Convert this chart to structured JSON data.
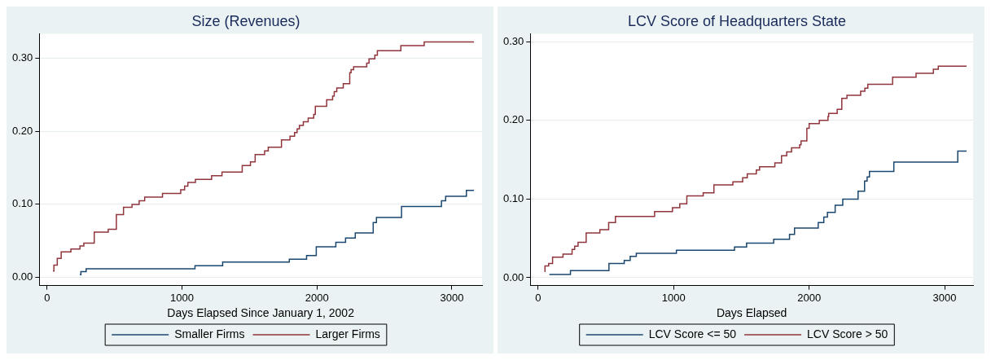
{
  "chart_data": [
    {
      "type": "step",
      "title": "Size (Revenues)",
      "xlabel": "Days Elapsed Since January 1, 2002",
      "xlim": [
        -58,
        3224
      ],
      "xticks": [
        0,
        1000,
        2000,
        3000
      ],
      "ylim": [
        -0.011,
        0.333
      ],
      "yticks": [
        {
          "value": 0,
          "label": "0.00"
        },
        {
          "value": 0.1,
          "label": "0.10"
        },
        {
          "value": 0.2,
          "label": "0.20"
        },
        {
          "value": 0.3,
          "label": "0.30"
        }
      ],
      "grid": "y",
      "legend": "bottom",
      "series": [
        {
          "name": "Smaller Firms",
          "color": "#1a476f",
          "x": [
            243,
            250,
            289,
            1096,
            1301,
            1795,
            1923,
            1995,
            2140,
            2212,
            2284,
            2417,
            2441,
            2627,
            2923,
            2954,
            3108,
            3164
          ],
          "values": [
            0.004,
            0.008,
            0.012,
            0.016,
            0.021,
            0.025,
            0.03,
            0.042,
            0.048,
            0.054,
            0.061,
            0.075,
            0.082,
            0.097,
            0.105,
            0.111,
            0.119,
            0.119
          ]
        },
        {
          "name": "Larger Firms",
          "color": "#90353b",
          "x": [
            43,
            50,
            75,
            104,
            176,
            243,
            272,
            349,
            453,
            513,
            566,
            629,
            682,
            723,
            855,
            990,
            1019,
            1043,
            1099,
            1219,
            1296,
            1446,
            1507,
            1542,
            1612,
            1639,
            1737,
            1800,
            1834,
            1853,
            1870,
            1899,
            1935,
            1976,
            1988,
            2072,
            2116,
            2128,
            2147,
            2195,
            2243,
            2253,
            2272,
            2369,
            2386,
            2429,
            2448,
            2622,
            2795,
            3164
          ],
          "values": [
            0.009,
            0.017,
            0.026,
            0.035,
            0.039,
            0.043,
            0.047,
            0.062,
            0.066,
            0.086,
            0.096,
            0.1,
            0.105,
            0.11,
            0.115,
            0.12,
            0.125,
            0.13,
            0.134,
            0.139,
            0.144,
            0.153,
            0.158,
            0.168,
            0.173,
            0.178,
            0.188,
            0.193,
            0.198,
            0.203,
            0.208,
            0.213,
            0.218,
            0.223,
            0.234,
            0.243,
            0.248,
            0.254,
            0.259,
            0.265,
            0.28,
            0.284,
            0.288,
            0.293,
            0.299,
            0.304,
            0.31,
            0.317,
            0.322,
            0.322
          ]
        }
      ]
    },
    {
      "type": "step",
      "title": "LCV Score of Headquarters State",
      "xlabel": "Days Elapsed",
      "xlim": [
        -58,
        3210
      ],
      "xticks": [
        0,
        1000,
        2000,
        3000
      ],
      "ylim": [
        -0.01,
        0.31
      ],
      "yticks": [
        {
          "value": 0,
          "label": "0.00"
        },
        {
          "value": 0.1,
          "label": "0.10"
        },
        {
          "value": 0.2,
          "label": "0.20"
        },
        {
          "value": 0.3,
          "label": "0.30"
        }
      ],
      "grid": "y",
      "legend": "bottom",
      "series": [
        {
          "name": "LCV Score <= 50",
          "color": "#1a476f",
          "x": [
            82,
            238,
            522,
            635,
            679,
            724,
            1020,
            1449,
            1538,
            1738,
            1855,
            1892,
            2067,
            2108,
            2135,
            2192,
            2248,
            2361,
            2409,
            2428,
            2445,
            2625,
            3097,
            3162
          ],
          "values": [
            0.004,
            0.009,
            0.018,
            0.022,
            0.027,
            0.031,
            0.035,
            0.039,
            0.044,
            0.049,
            0.055,
            0.063,
            0.07,
            0.077,
            0.083,
            0.092,
            0.1,
            0.11,
            0.123,
            0.128,
            0.135,
            0.147,
            0.161,
            0.161
          ]
        },
        {
          "name": "LCV Score > 50",
          "color": "#90353b",
          "x": [
            46,
            50,
            77,
            106,
            183,
            250,
            269,
            294,
            354,
            455,
            520,
            570,
            859,
            991,
            1045,
            1097,
            1218,
            1297,
            1437,
            1509,
            1543,
            1610,
            1634,
            1747,
            1796,
            1834,
            1870,
            1930,
            1940,
            1983,
            2000,
            2075,
            2139,
            2144,
            2207,
            2241,
            2279,
            2380,
            2411,
            2433,
            2616,
            2789,
            2917,
            2953,
            3162
          ],
          "values": [
            0.008,
            0.015,
            0.018,
            0.026,
            0.03,
            0.036,
            0.04,
            0.045,
            0.057,
            0.061,
            0.07,
            0.078,
            0.084,
            0.089,
            0.094,
            0.104,
            0.108,
            0.118,
            0.122,
            0.127,
            0.132,
            0.137,
            0.141,
            0.146,
            0.155,
            0.16,
            0.165,
            0.169,
            0.174,
            0.19,
            0.196,
            0.2,
            0.205,
            0.209,
            0.214,
            0.228,
            0.232,
            0.237,
            0.241,
            0.246,
            0.255,
            0.26,
            0.265,
            0.269,
            0.269
          ]
        }
      ]
    }
  ]
}
